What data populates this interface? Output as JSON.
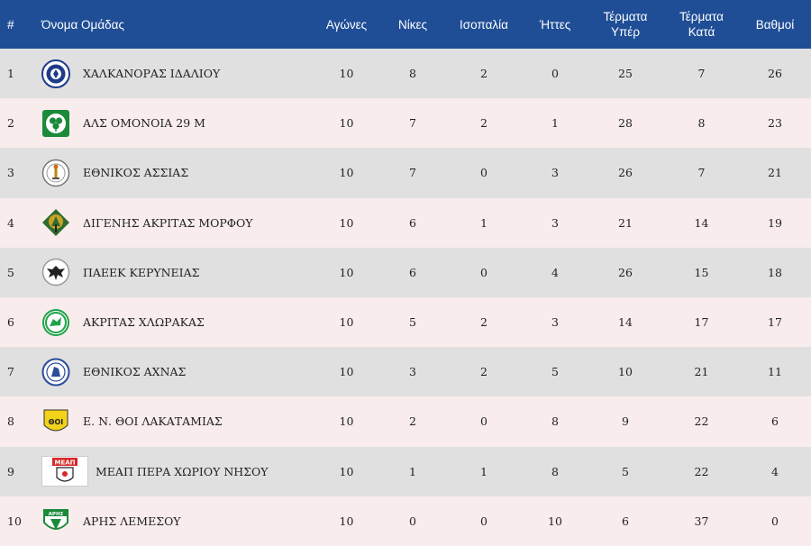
{
  "headers": {
    "rank": "#",
    "team": "Όνομα Ομάδας",
    "played": "Αγώνες",
    "wins": "Νίκες",
    "draws": "Ισοπαλία",
    "losses": "Ήττες",
    "goals_for_1": "Τέρματα",
    "goals_for_2": "Υπέρ",
    "goals_against_1": "Τέρματα",
    "goals_against_2": "Κατά",
    "points": "Βαθμοί"
  },
  "rows": [
    {
      "rank": "1",
      "team": "ΧΑΛΚΑΝΟΡΑΣ ΙΔΑΛΙΟΥ",
      "played": "10",
      "wins": "8",
      "draws": "2",
      "losses": "0",
      "gf": "25",
      "ga": "7",
      "pts": "26"
    },
    {
      "rank": "2",
      "team": "ΑΛΣ ΟΜΟΝΟΙΑ 29 Μ",
      "played": "10",
      "wins": "7",
      "draws": "2",
      "losses": "1",
      "gf": "28",
      "ga": "8",
      "pts": "23"
    },
    {
      "rank": "3",
      "team": "ΕΘΝΙΚΟΣ ΑΣΣΙΑΣ",
      "played": "10",
      "wins": "7",
      "draws": "0",
      "losses": "3",
      "gf": "26",
      "ga": "7",
      "pts": "21"
    },
    {
      "rank": "4",
      "team": "ΔΙΓΕΝΗΣ ΑΚΡΙΤΑΣ ΜΟΡΦΟΥ",
      "played": "10",
      "wins": "6",
      "draws": "1",
      "losses": "3",
      "gf": "21",
      "ga": "14",
      "pts": "19"
    },
    {
      "rank": "5",
      "team": "ΠΑΕΕΚ ΚΕΡΥΝΕΙΑΣ",
      "played": "10",
      "wins": "6",
      "draws": "0",
      "losses": "4",
      "gf": "26",
      "ga": "15",
      "pts": "18"
    },
    {
      "rank": "6",
      "team": "ΑΚΡΙΤΑΣ ΧΛΩΡΑΚΑΣ",
      "played": "10",
      "wins": "5",
      "draws": "2",
      "losses": "3",
      "gf": "14",
      "ga": "17",
      "pts": "17"
    },
    {
      "rank": "7",
      "team": "ΕΘΝΙΚΟΣ ΑΧΝΑΣ",
      "played": "10",
      "wins": "3",
      "draws": "2",
      "losses": "5",
      "gf": "10",
      "ga": "21",
      "pts": "11"
    },
    {
      "rank": "8",
      "team": "Ε. Ν. ΘΟΙ ΛΑΚΑΤΑΜΙΑΣ",
      "played": "10",
      "wins": "2",
      "draws": "0",
      "losses": "8",
      "gf": "9",
      "ga": "22",
      "pts": "6"
    },
    {
      "rank": "9",
      "team": "ΜΕΑΠ ΠΕΡΑ ΧΩΡΙΟΥ ΝΗΣΟΥ",
      "played": "10",
      "wins": "1",
      "draws": "1",
      "losses": "8",
      "gf": "5",
      "ga": "22",
      "pts": "4"
    },
    {
      "rank": "10",
      "team": "ΑΡΗΣ ΛΕΜΕΣΟΥ",
      "played": "10",
      "wins": "0",
      "draws": "0",
      "losses": "10",
      "gf": "6",
      "ga": "37",
      "pts": "0"
    }
  ],
  "logo_text": {
    "meap": "ΜΕΑΠ",
    "thoi": "ΘΟΙ",
    "aris": "ΑΡΗΣ"
  },
  "colors": {
    "header_bg": "#1f4e96",
    "row_odd": "#e0e0e0",
    "row_even": "#f8eced"
  }
}
